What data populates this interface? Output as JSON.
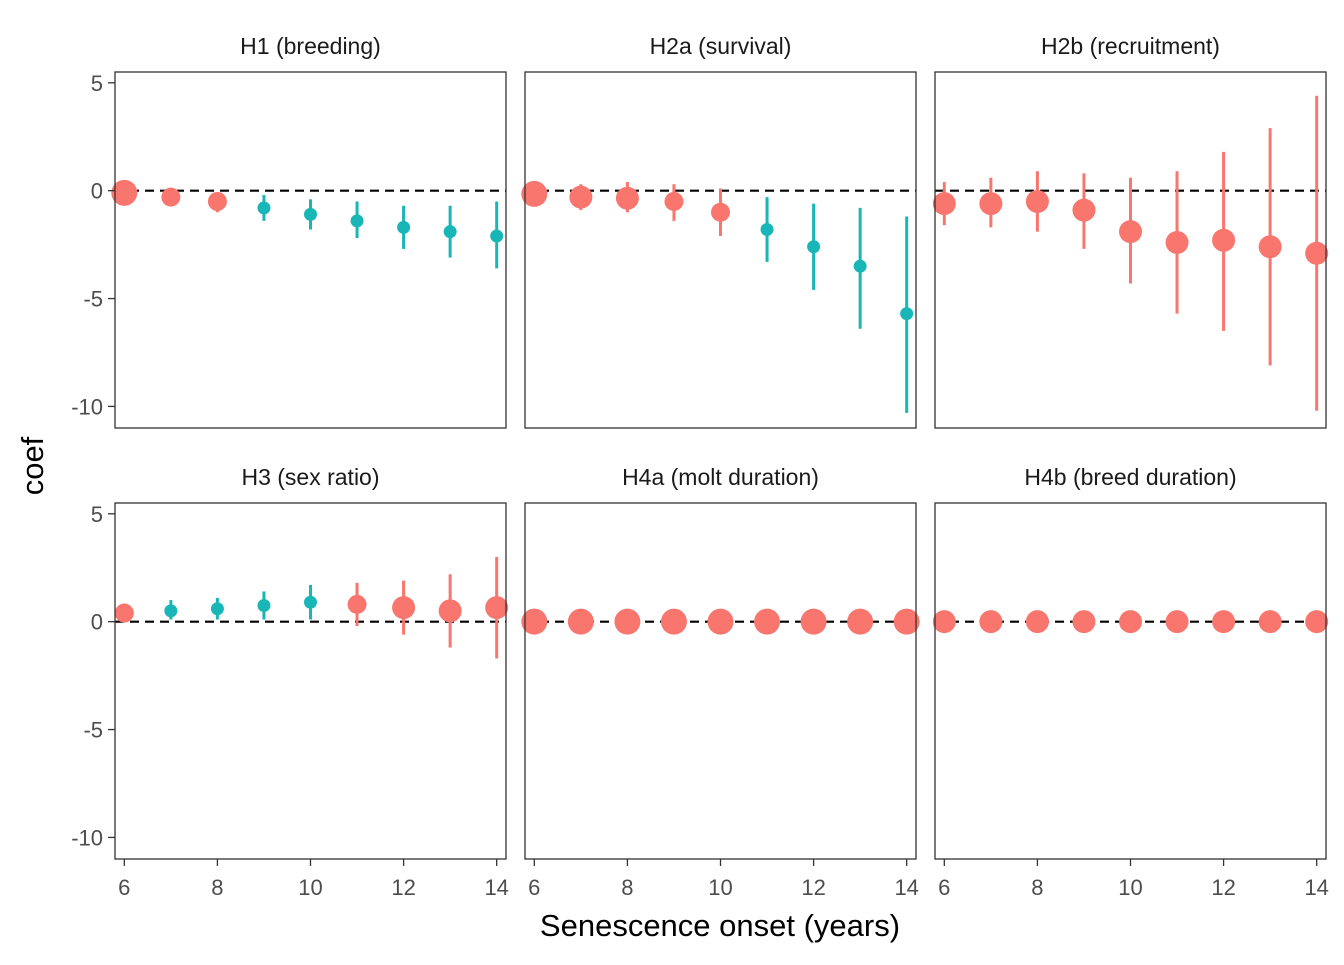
{
  "chart_data": {
    "type": "scatter",
    "subtype": "faceted point-range",
    "xlabel": "Senescence onset (years)",
    "ylabel": "coef",
    "xlim": [
      5.8,
      14.2
    ],
    "ylim": [
      -11,
      5.5
    ],
    "x_ticks": [
      6,
      8,
      10,
      12,
      14
    ],
    "y_ticks": [
      5,
      0,
      -5,
      -10
    ],
    "reference_line": {
      "y": 0,
      "style": "dashed",
      "color": "#000000"
    },
    "colors": {
      "group_a": "#F8766D",
      "group_b": "#19B6B8"
    },
    "grid": false,
    "legend": "none",
    "facets": [
      {
        "title": "H1 (breeding)",
        "points": [
          {
            "x": 6,
            "y": -0.1,
            "lo": -0.1,
            "hi": -0.1,
            "group": "a",
            "size": "xl"
          },
          {
            "x": 7,
            "y": -0.3,
            "lo": -0.7,
            "hi": 0.1,
            "group": "a",
            "size": "md"
          },
          {
            "x": 8,
            "y": -0.5,
            "lo": -1.0,
            "hi": -0.1,
            "group": "a",
            "size": "md"
          },
          {
            "x": 9,
            "y": -0.8,
            "lo": -1.4,
            "hi": -0.2,
            "group": "b",
            "size": "sm"
          },
          {
            "x": 10,
            "y": -1.1,
            "lo": -1.8,
            "hi": -0.4,
            "group": "b",
            "size": "sm"
          },
          {
            "x": 11,
            "y": -1.4,
            "lo": -2.2,
            "hi": -0.5,
            "group": "b",
            "size": "sm"
          },
          {
            "x": 12,
            "y": -1.7,
            "lo": -2.7,
            "hi": -0.7,
            "group": "b",
            "size": "sm"
          },
          {
            "x": 13,
            "y": -1.9,
            "lo": -3.1,
            "hi": -0.7,
            "group": "b",
            "size": "sm"
          },
          {
            "x": 14,
            "y": -2.1,
            "lo": -3.6,
            "hi": -0.5,
            "group": "b",
            "size": "sm"
          }
        ]
      },
      {
        "title": "H2a (survival)",
        "points": [
          {
            "x": 6,
            "y": -0.15,
            "lo": -0.3,
            "hi": 0.0,
            "group": "a",
            "size": "xl"
          },
          {
            "x": 7,
            "y": -0.3,
            "lo": -0.9,
            "hi": 0.3,
            "group": "a",
            "size": "lg"
          },
          {
            "x": 8,
            "y": -0.35,
            "lo": -1.0,
            "hi": 0.4,
            "group": "a",
            "size": "lg"
          },
          {
            "x": 9,
            "y": -0.5,
            "lo": -1.4,
            "hi": 0.3,
            "group": "a",
            "size": "md"
          },
          {
            "x": 10,
            "y": -1.0,
            "lo": -2.1,
            "hi": 0.1,
            "group": "a",
            "size": "md"
          },
          {
            "x": 11,
            "y": -1.8,
            "lo": -3.3,
            "hi": -0.3,
            "group": "b",
            "size": "sm"
          },
          {
            "x": 12,
            "y": -2.6,
            "lo": -4.6,
            "hi": -0.6,
            "group": "b",
            "size": "sm"
          },
          {
            "x": 13,
            "y": -3.5,
            "lo": -6.4,
            "hi": -0.8,
            "group": "b",
            "size": "sm"
          },
          {
            "x": 14,
            "y": -5.7,
            "lo": -10.3,
            "hi": -1.2,
            "group": "b",
            "size": "sm"
          }
        ]
      },
      {
        "title": "H2b (recruitment)",
        "points": [
          {
            "x": 6,
            "y": -0.6,
            "lo": -1.6,
            "hi": 0.4,
            "group": "a",
            "size": "lg"
          },
          {
            "x": 7,
            "y": -0.6,
            "lo": -1.7,
            "hi": 0.6,
            "group": "a",
            "size": "lg"
          },
          {
            "x": 8,
            "y": -0.5,
            "lo": -1.9,
            "hi": 0.9,
            "group": "a",
            "size": "lg"
          },
          {
            "x": 9,
            "y": -0.9,
            "lo": -2.7,
            "hi": 0.8,
            "group": "a",
            "size": "lg"
          },
          {
            "x": 10,
            "y": -1.9,
            "lo": -4.3,
            "hi": 0.6,
            "group": "a",
            "size": "lg"
          },
          {
            "x": 11,
            "y": -2.4,
            "lo": -5.7,
            "hi": 0.9,
            "group": "a",
            "size": "lg"
          },
          {
            "x": 12,
            "y": -2.3,
            "lo": -6.5,
            "hi": 1.8,
            "group": "a",
            "size": "lg"
          },
          {
            "x": 13,
            "y": -2.6,
            "lo": -8.1,
            "hi": 2.9,
            "group": "a",
            "size": "lg"
          },
          {
            "x": 14,
            "y": -2.9,
            "lo": -10.2,
            "hi": 4.4,
            "group": "a",
            "size": "lg"
          }
        ]
      },
      {
        "title": "H3 (sex ratio)",
        "points": [
          {
            "x": 6,
            "y": 0.4,
            "lo": 0.3,
            "hi": 0.5,
            "group": "a",
            "size": "md"
          },
          {
            "x": 7,
            "y": 0.5,
            "lo": 0.1,
            "hi": 1.0,
            "group": "b",
            "size": "sm"
          },
          {
            "x": 8,
            "y": 0.6,
            "lo": 0.1,
            "hi": 1.1,
            "group": "b",
            "size": "sm"
          },
          {
            "x": 9,
            "y": 0.75,
            "lo": 0.1,
            "hi": 1.4,
            "group": "b",
            "size": "sm"
          },
          {
            "x": 10,
            "y": 0.9,
            "lo": 0.1,
            "hi": 1.7,
            "group": "b",
            "size": "sm"
          },
          {
            "x": 11,
            "y": 0.8,
            "lo": -0.2,
            "hi": 1.8,
            "group": "a",
            "size": "md"
          },
          {
            "x": 12,
            "y": 0.65,
            "lo": -0.6,
            "hi": 1.9,
            "group": "a",
            "size": "lg"
          },
          {
            "x": 13,
            "y": 0.5,
            "lo": -1.2,
            "hi": 2.2,
            "group": "a",
            "size": "lg"
          },
          {
            "x": 14,
            "y": 0.65,
            "lo": -1.7,
            "hi": 3.0,
            "group": "a",
            "size": "lg"
          }
        ]
      },
      {
        "title": "H4a (molt duration)",
        "points": [
          {
            "x": 6,
            "y": 0,
            "lo": 0,
            "hi": 0,
            "group": "a",
            "size": "xl"
          },
          {
            "x": 7,
            "y": 0,
            "lo": 0,
            "hi": 0,
            "group": "a",
            "size": "xl"
          },
          {
            "x": 8,
            "y": 0,
            "lo": 0,
            "hi": 0,
            "group": "a",
            "size": "xl"
          },
          {
            "x": 9,
            "y": 0,
            "lo": 0,
            "hi": 0,
            "group": "a",
            "size": "xl"
          },
          {
            "x": 10,
            "y": 0,
            "lo": 0,
            "hi": 0,
            "group": "a",
            "size": "xl"
          },
          {
            "x": 11,
            "y": 0,
            "lo": 0,
            "hi": 0,
            "group": "a",
            "size": "xl"
          },
          {
            "x": 12,
            "y": 0,
            "lo": 0,
            "hi": 0,
            "group": "a",
            "size": "xl"
          },
          {
            "x": 13,
            "y": 0,
            "lo": 0,
            "hi": 0,
            "group": "a",
            "size": "xl"
          },
          {
            "x": 14,
            "y": 0,
            "lo": 0,
            "hi": 0,
            "group": "a",
            "size": "xl"
          }
        ]
      },
      {
        "title": "H4b (breed duration)",
        "points": [
          {
            "x": 6,
            "y": 0,
            "lo": 0,
            "hi": 0,
            "group": "a",
            "size": "lg"
          },
          {
            "x": 7,
            "y": 0,
            "lo": 0,
            "hi": 0,
            "group": "a",
            "size": "lg"
          },
          {
            "x": 8,
            "y": 0,
            "lo": 0,
            "hi": 0,
            "group": "a",
            "size": "lg"
          },
          {
            "x": 9,
            "y": 0,
            "lo": 0,
            "hi": 0,
            "group": "a",
            "size": "lg"
          },
          {
            "x": 10,
            "y": 0,
            "lo": 0,
            "hi": 0,
            "group": "a",
            "size": "lg"
          },
          {
            "x": 11,
            "y": 0,
            "lo": 0,
            "hi": 0,
            "group": "a",
            "size": "lg"
          },
          {
            "x": 12,
            "y": 0,
            "lo": 0,
            "hi": 0,
            "group": "a",
            "size": "lg"
          },
          {
            "x": 13,
            "y": 0,
            "lo": 0,
            "hi": 0,
            "group": "a",
            "size": "lg"
          },
          {
            "x": 14,
            "y": 0,
            "lo": 0,
            "hi": 0,
            "group": "a",
            "size": "lg"
          }
        ]
      }
    ]
  }
}
